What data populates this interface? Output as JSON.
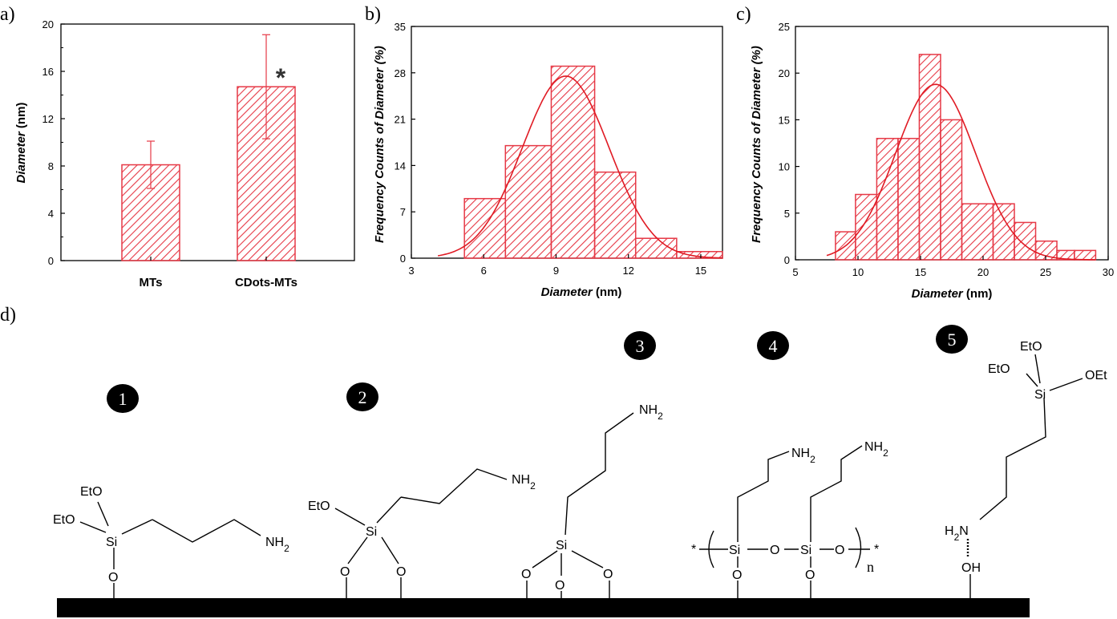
{
  "panels": {
    "a": "a)",
    "b": "b)",
    "c": "c)",
    "d": "d)"
  },
  "colors": {
    "bar_stroke": "#e63946",
    "fit_line": "#e01b24",
    "axis": "#000000"
  },
  "chart_data": [
    {
      "id": "a",
      "type": "bar",
      "categories": [
        "MTs",
        "CDots-MTs"
      ],
      "values": [
        8.1,
        14.7
      ],
      "errors": [
        2.0,
        4.4
      ],
      "annotation": "*",
      "ylabel_italic": "Diameter",
      "ylabel_unit": " (nm)",
      "ylim": [
        0,
        20
      ],
      "yticks": [
        0,
        4,
        8,
        12,
        16,
        20
      ],
      "grid": false
    },
    {
      "id": "b",
      "type": "bar",
      "subtype": "histogram-with-fit",
      "bins": [
        {
          "x0": 5.2,
          "x1": 6.9,
          "value": 9
        },
        {
          "x0": 6.9,
          "x1": 8.8,
          "value": 17
        },
        {
          "x0": 8.8,
          "x1": 10.6,
          "value": 29
        },
        {
          "x0": 10.6,
          "x1": 12.3,
          "value": 13
        },
        {
          "x0": 12.3,
          "x1": 14.0,
          "value": 3
        },
        {
          "x0": 14.0,
          "x1": 15.9,
          "value": 1
        }
      ],
      "fit": {
        "mean": 9.4,
        "sd": 1.8,
        "peak": 27.5,
        "x_start": 4.1,
        "x_end": 15.9
      },
      "xlabel_italic": "Diameter",
      "xlabel_unit": " (nm)",
      "ylabel": "Frequency  Counts of Diameter (%)",
      "xlim": [
        3,
        15.9
      ],
      "ylim": [
        0,
        35
      ],
      "xticks": [
        3,
        6,
        9,
        12,
        15
      ],
      "yticks": [
        0,
        7,
        14,
        21,
        28,
        35
      ],
      "grid": false
    },
    {
      "id": "c",
      "type": "bar",
      "subtype": "histogram-with-fit",
      "bins": [
        {
          "x0": 8.2,
          "x1": 9.8,
          "value": 3
        },
        {
          "x0": 9.8,
          "x1": 11.5,
          "value": 7
        },
        {
          "x0": 11.5,
          "x1": 13.2,
          "value": 13
        },
        {
          "x0": 13.2,
          "x1": 14.9,
          "value": 13
        },
        {
          "x0": 14.9,
          "x1": 16.6,
          "value": 22
        },
        {
          "x0": 16.6,
          "x1": 18.3,
          "value": 15
        },
        {
          "x0": 18.3,
          "x1": 20.8,
          "value": 6
        },
        {
          "x0": 20.8,
          "x1": 22.5,
          "value": 6
        },
        {
          "x0": 22.5,
          "x1": 24.2,
          "value": 4
        },
        {
          "x0": 24.2,
          "x1": 25.9,
          "value": 2
        },
        {
          "x0": 25.9,
          "x1": 27.3,
          "value": 1
        },
        {
          "x0": 27.3,
          "x1": 29.0,
          "value": 1
        }
      ],
      "fit": {
        "mean": 16.2,
        "sd": 3.2,
        "peak": 18.8,
        "x_start": 7.5,
        "x_end": 29.0
      },
      "xlabel_italic": "Diameter",
      "xlabel_unit": " (nm)",
      "ylabel": "Frequency Counts of Diameter (%)",
      "xlim": [
        5,
        30
      ],
      "ylim": [
        0,
        25
      ],
      "xticks": [
        5,
        10,
        15,
        20,
        25,
        30
      ],
      "yticks": [
        0,
        5,
        10,
        15,
        20,
        25
      ],
      "grid": false
    }
  ],
  "scheme": {
    "badges": [
      "1",
      "2",
      "3",
      "4",
      "5"
    ],
    "s1": {
      "eto1": "EtO",
      "eto2": "EtO",
      "si": "Si",
      "o": "O",
      "nh2": "NH2"
    },
    "s2": {
      "eto": "EtO",
      "si": "Si",
      "o1": "O",
      "o2": "O",
      "nh2": "NH2"
    },
    "s3": {
      "si": "Si",
      "o1": "O",
      "o2": "O",
      "o3": "O",
      "nh2": "NH2"
    },
    "s4": {
      "star_left": "*",
      "si1": "Si",
      "o_mid": "O",
      "si2": "Si",
      "o_end": "O",
      "star_right": "*",
      "n": "n",
      "o1": "O",
      "o2": "O",
      "nh2_1": "NH2",
      "nh2_2": "NH2"
    },
    "s5": {
      "eto_top": "EtO",
      "eto_left": "EtO",
      "oet": "OEt",
      "si": "Si",
      "h2n": "H2N",
      "oh": "OH"
    }
  }
}
